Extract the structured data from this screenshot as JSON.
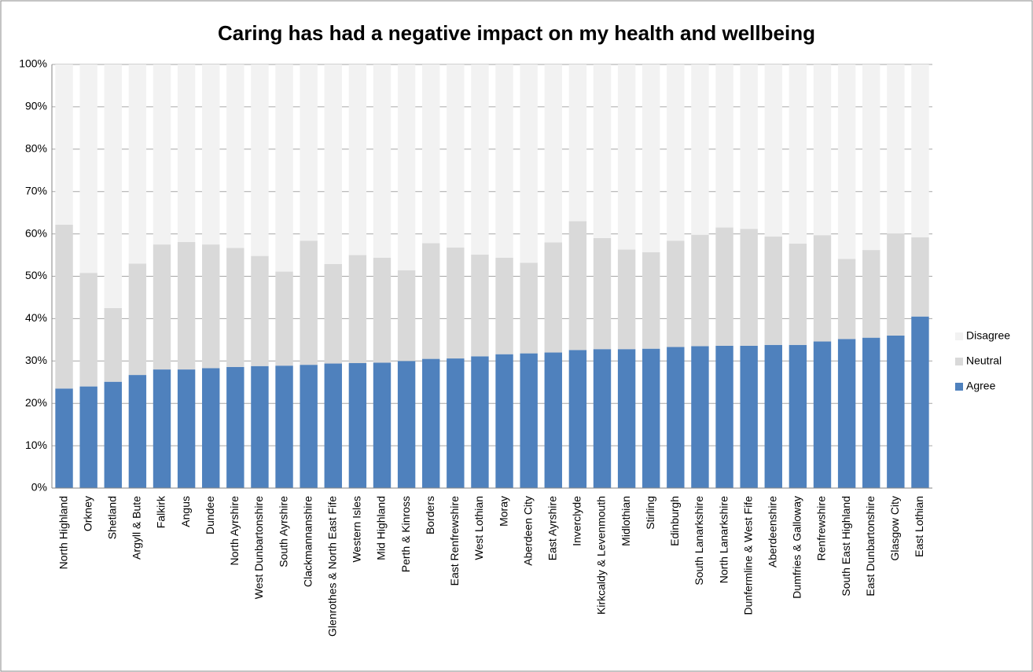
{
  "chart_data": {
    "type": "stacked_bar_100",
    "title": "Caring has had a negative impact on my health and wellbeing",
    "categories": [
      "North Highland",
      "Orkney",
      "Shetland",
      "Argyll & Bute",
      "Falkirk",
      "Angus",
      "Dundee",
      "North Ayrshire",
      "West Dunbartonshire",
      "South Ayrshire",
      "Clackmannanshire",
      "Glenrothes & North East Fife",
      "Western Isles",
      "Mid Highland",
      "Perth & Kinross",
      "Borders",
      "East Renfrewshire",
      "West Lothian",
      "Moray",
      "Aberdeen City",
      "East Ayrshire",
      "Inverclyde",
      "Kirkcaldy & Levenmouth",
      "Midlothian",
      "Stirling",
      "Edinburgh",
      "South Lanarkshire",
      "North Lanarkshire",
      "Dunfermline & West Fife",
      "Aberdeenshire",
      "Dumfries & Galloway",
      "Renfrewshire",
      "South East Highland",
      "East Dunbartonshire",
      "Glasgow City",
      "East Lothian"
    ],
    "series": [
      {
        "name": "Agree",
        "color": "#4f81bd",
        "values": [
          23.5,
          24,
          25.1,
          26.7,
          28,
          28,
          28.3,
          28.6,
          28.8,
          28.9,
          29.1,
          29.4,
          29.5,
          29.6,
          30,
          30.5,
          30.6,
          31.1,
          31.6,
          31.8,
          32,
          32.6,
          32.8,
          32.8,
          32.9,
          33.3,
          33.5,
          33.6,
          33.6,
          33.8,
          33.8,
          34.6,
          35.2,
          35.5,
          36,
          40.5
        ]
      },
      {
        "name": "Neutral",
        "color": "#d9d9d9",
        "values": [
          38.7,
          26.8,
          17.4,
          26.3,
          29.5,
          30.1,
          29.2,
          28.1,
          26,
          22.2,
          29.3,
          23.5,
          25.5,
          24.8,
          21.4,
          27.3,
          26.2,
          24,
          22.8,
          21.4,
          26,
          30.4,
          26.2,
          23.5,
          22.8,
          25.1,
          26.3,
          27.9,
          27.6,
          25.6,
          23.9,
          25.1,
          18.9,
          20.7,
          24.1,
          18.7
        ]
      },
      {
        "name": "Disagree",
        "color": "#f2f2f2",
        "values": [
          37.8,
          49.2,
          57.5,
          47,
          42.5,
          41.9,
          42.5,
          43.3,
          45.2,
          48.9,
          41.6,
          47.1,
          45,
          45.6,
          48.6,
          42.2,
          43.2,
          44.9,
          45.6,
          46.8,
          42,
          37,
          41,
          43.7,
          44.3,
          41.6,
          40.2,
          38.5,
          38.8,
          40.6,
          42.3,
          40.3,
          45.9,
          43.8,
          39.9,
          40.8
        ]
      }
    ],
    "ylim": [
      0,
      100
    ],
    "yticks": [
      {
        "value": 0,
        "label": "0%"
      },
      {
        "value": 10,
        "label": "10%"
      },
      {
        "value": 20,
        "label": "20%"
      },
      {
        "value": 30,
        "label": "30%"
      },
      {
        "value": 40,
        "label": "40%"
      },
      {
        "value": 50,
        "label": "50%"
      },
      {
        "value": 60,
        "label": "60%"
      },
      {
        "value": 70,
        "label": "70%"
      },
      {
        "value": 80,
        "label": "80%"
      },
      {
        "value": 90,
        "label": "90%"
      },
      {
        "value": 100,
        "label": "100%"
      }
    ],
    "grid": true,
    "legend": "right"
  }
}
